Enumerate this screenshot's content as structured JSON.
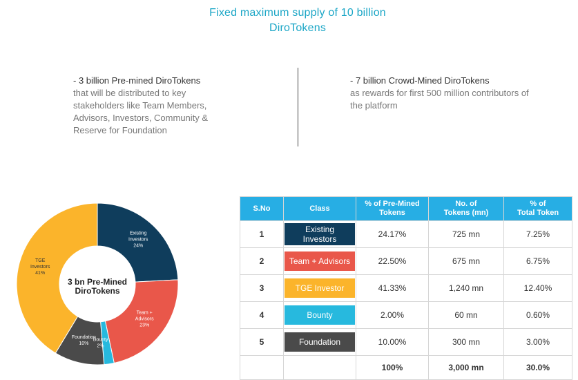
{
  "header": {
    "title_line1": "Fixed maximum supply of 10 billion",
    "title_line2": "DiroTokens"
  },
  "left_block": {
    "lead": "- 3 billion Pre-mined DiroTokens",
    "description": "that will be distributed to key stakeholders like Team Members, Advisors, Investors, Community & Reserve for Foundation"
  },
  "right_block": {
    "lead": "- 7 billion Crowd-Mined DiroTokens",
    "description": "as rewards for first 500 million contributors of the platform"
  },
  "chart_data": {
    "type": "pie",
    "center_label_line1": "3 bn Pre-Mined",
    "center_label_line2": "DiroTokens",
    "slices": [
      {
        "label_lines": [
          "Existing",
          "Investors"
        ],
        "pct_label": "24%",
        "value": 24.17,
        "color": "#0f3d5c"
      },
      {
        "label_lines": [
          "Team +",
          "Advisors"
        ],
        "pct_label": "23%",
        "value": 22.5,
        "color": "#e9574a"
      },
      {
        "label_lines": [
          "Bounty"
        ],
        "pct_label": "2%",
        "value": 2.0,
        "color": "#27b9de"
      },
      {
        "label_lines": [
          "Foundation"
        ],
        "pct_label": "10%",
        "value": 10.0,
        "color": "#4a4a4a"
      },
      {
        "label_lines": [
          "TGE",
          "Investors"
        ],
        "pct_label": "41%",
        "value": 41.33,
        "color": "#fbb42b"
      }
    ]
  },
  "table": {
    "headers": {
      "sno": "S.No",
      "class": "Class",
      "pct_premined_1": "% of Pre-Mined",
      "pct_premined_2": "Tokens",
      "num_tokens_1": "No. of",
      "num_tokens_2": "Tokens (mn)",
      "pct_total_1": "% of",
      "pct_total_2": "Total Token"
    },
    "rows": [
      {
        "sno": "1",
        "class_line1": "Existing",
        "class_line2": "Investors",
        "pct_premined": "24.17%",
        "tokens": "725 mn",
        "pct_total": "7.25%",
        "color": "#0f3d5c"
      },
      {
        "sno": "2",
        "class_line1": "Team + Advisors",
        "class_line2": "",
        "pct_premined": "22.50%",
        "tokens": "675 mn",
        "pct_total": "6.75%",
        "color": "#e9574a"
      },
      {
        "sno": "3",
        "class_line1": "TGE Investor",
        "class_line2": "",
        "pct_premined": "41.33%",
        "tokens": "1,240 mn",
        "pct_total": "12.40%",
        "color": "#fbb42b"
      },
      {
        "sno": "4",
        "class_line1": "Bounty",
        "class_line2": "",
        "pct_premined": "2.00%",
        "tokens": "60 mn",
        "pct_total": "0.60%",
        "color": "#27b9de"
      },
      {
        "sno": "5",
        "class_line1": "Foundation",
        "class_line2": "",
        "pct_premined": "10.00%",
        "tokens": "300 mn",
        "pct_total": "3.00%",
        "color": "#4a4a4a"
      }
    ],
    "totals": {
      "pct_premined": "100%",
      "tokens": "3,000 mn",
      "pct_total": "30.0%"
    }
  }
}
